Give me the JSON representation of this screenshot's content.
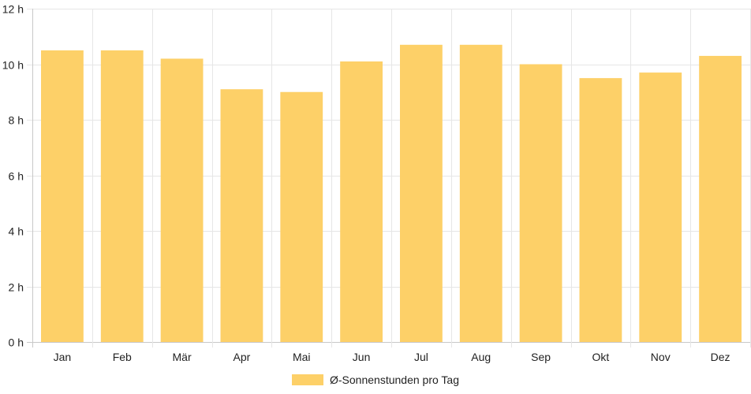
{
  "chart_data": {
    "type": "bar",
    "categories": [
      "Jan",
      "Feb",
      "Mär",
      "Apr",
      "Mai",
      "Jun",
      "Jul",
      "Aug",
      "Sep",
      "Okt",
      "Nov",
      "Dez"
    ],
    "series": [
      {
        "name": "Ø-Sonnenstunden pro Tag",
        "values": [
          10.5,
          10.5,
          10.2,
          9.1,
          9.0,
          10.1,
          10.7,
          10.7,
          10.0,
          9.5,
          9.7,
          10.3
        ],
        "color": "#fdd068"
      }
    ],
    "title": "",
    "xlabel": "",
    "ylabel": "",
    "ylim": [
      0,
      12
    ],
    "y_ticks": [
      0,
      2,
      4,
      6,
      8,
      10,
      12
    ],
    "y_tick_labels": [
      "0 h",
      "2 h",
      "4 h",
      "6 h",
      "8 h",
      "10 h",
      "12 h"
    ],
    "grid": true,
    "legend_position": "bottom"
  }
}
